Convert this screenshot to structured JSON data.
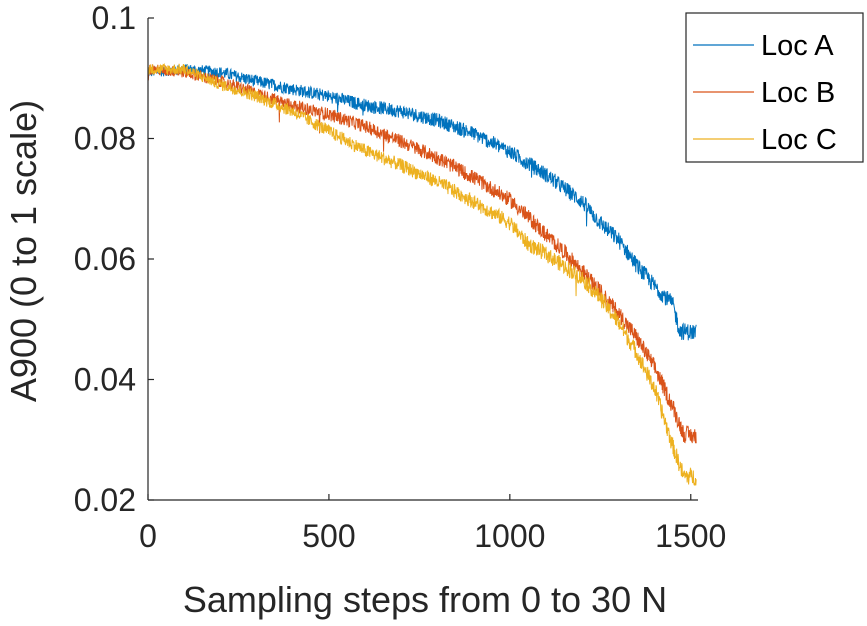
{
  "chart_data": {
    "type": "line",
    "title": "",
    "xlabel": "Sampling steps from 0 to 30 N",
    "ylabel": "A900 (0 to 1 scale)",
    "xlim": [
      0,
      1520
    ],
    "ylim": [
      0.02,
      0.1
    ],
    "xticks": [
      0,
      500,
      1000,
      1500
    ],
    "xtick_labels": [
      "0",
      "500",
      "1000",
      "1500"
    ],
    "yticks": [
      0.02,
      0.04,
      0.06,
      0.08,
      0.1
    ],
    "ytick_labels": [
      "0.02",
      "0.04",
      "0.06",
      "0.08",
      "0.1"
    ],
    "grid": false,
    "legend_position": "top-right",
    "n_points": 1516,
    "noise_amplitude": 0.0009,
    "series": [
      {
        "name": "Loc A",
        "color": "#0072BD",
        "x": [
          0,
          100,
          200,
          300,
          400,
          500,
          600,
          700,
          800,
          900,
          1000,
          1100,
          1200,
          1250,
          1300,
          1350,
          1400,
          1450,
          1470,
          1515
        ],
        "values": [
          0.091,
          0.0915,
          0.091,
          0.0895,
          0.0882,
          0.087,
          0.0855,
          0.0845,
          0.083,
          0.0808,
          0.0778,
          0.074,
          0.0695,
          0.066,
          0.0632,
          0.059,
          0.0555,
          0.0525,
          0.048,
          0.0478
        ]
      },
      {
        "name": "Loc B",
        "color": "#D95319",
        "x": [
          0,
          100,
          200,
          300,
          400,
          500,
          600,
          700,
          800,
          900,
          1000,
          1050,
          1100,
          1150,
          1200,
          1250,
          1300,
          1350,
          1400,
          1450,
          1480,
          1515
        ],
        "values": [
          0.0915,
          0.091,
          0.0895,
          0.0875,
          0.0855,
          0.084,
          0.082,
          0.0795,
          0.0768,
          0.0735,
          0.0698,
          0.067,
          0.064,
          0.0612,
          0.058,
          0.0545,
          0.051,
          0.047,
          0.042,
          0.0355,
          0.031,
          0.0305
        ]
      },
      {
        "name": "Loc C",
        "color": "#EDB120",
        "x": [
          0,
          100,
          200,
          300,
          400,
          500,
          600,
          700,
          800,
          900,
          1000,
          1050,
          1100,
          1150,
          1200,
          1250,
          1300,
          1350,
          1400,
          1450,
          1480,
          1515
        ],
        "values": [
          0.0915,
          0.0915,
          0.089,
          0.087,
          0.0845,
          0.0812,
          0.078,
          0.0755,
          0.0728,
          0.0695,
          0.066,
          0.0625,
          0.0608,
          0.0588,
          0.0568,
          0.0535,
          0.0495,
          0.0445,
          0.0385,
          0.029,
          0.024,
          0.0238
        ]
      }
    ]
  }
}
